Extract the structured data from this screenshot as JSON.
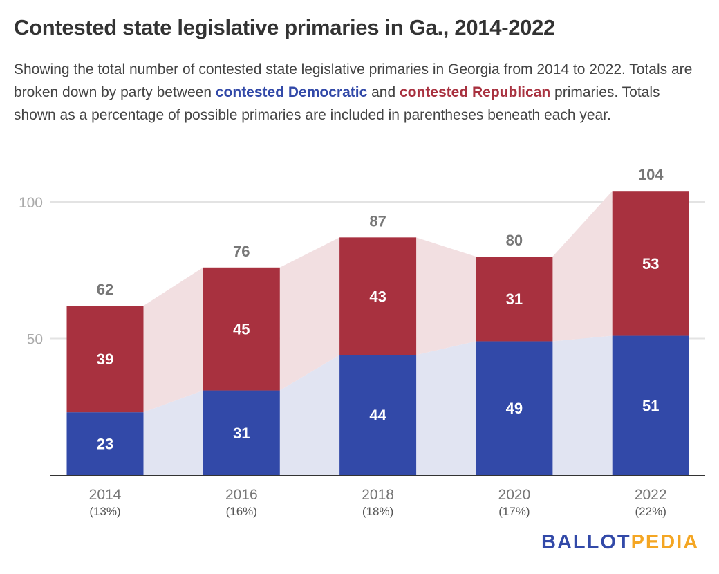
{
  "title": "Contested state legislative primaries in Ga., 2014-2022",
  "subtitle": {
    "part1": "Showing the total number of contested state legislative primaries in Georgia from 2014 to 2022. Totals are broken down by party between ",
    "dem_label": "contested Democratic",
    "part2": " and ",
    "rep_label": "contested Republican",
    "part3": " primaries. Totals shown as a percentage of possible primaries are included in parentheses beneath each year."
  },
  "logo": {
    "part1": "BALLOT",
    "part2": "PEDIA"
  },
  "chart_data": {
    "type": "bar",
    "stacked": true,
    "categories": [
      "2014",
      "2016",
      "2018",
      "2020",
      "2022"
    ],
    "category_sublabels": [
      "(13%)",
      "(16%)",
      "(18%)",
      "(17%)",
      "(22%)"
    ],
    "series": [
      {
        "name": "contested Democratic",
        "color": "#3249a8",
        "band_color": "#e1e4f2",
        "values": [
          23,
          31,
          44,
          49,
          51
        ]
      },
      {
        "name": "contested Republican",
        "color": "#a8313f",
        "band_color": "#f2dfe1",
        "values": [
          39,
          45,
          43,
          31,
          53
        ]
      }
    ],
    "totals": [
      62,
      76,
      87,
      80,
      104
    ],
    "yticks": [
      50,
      100
    ],
    "ylim": [
      0,
      110
    ],
    "grid": true
  }
}
